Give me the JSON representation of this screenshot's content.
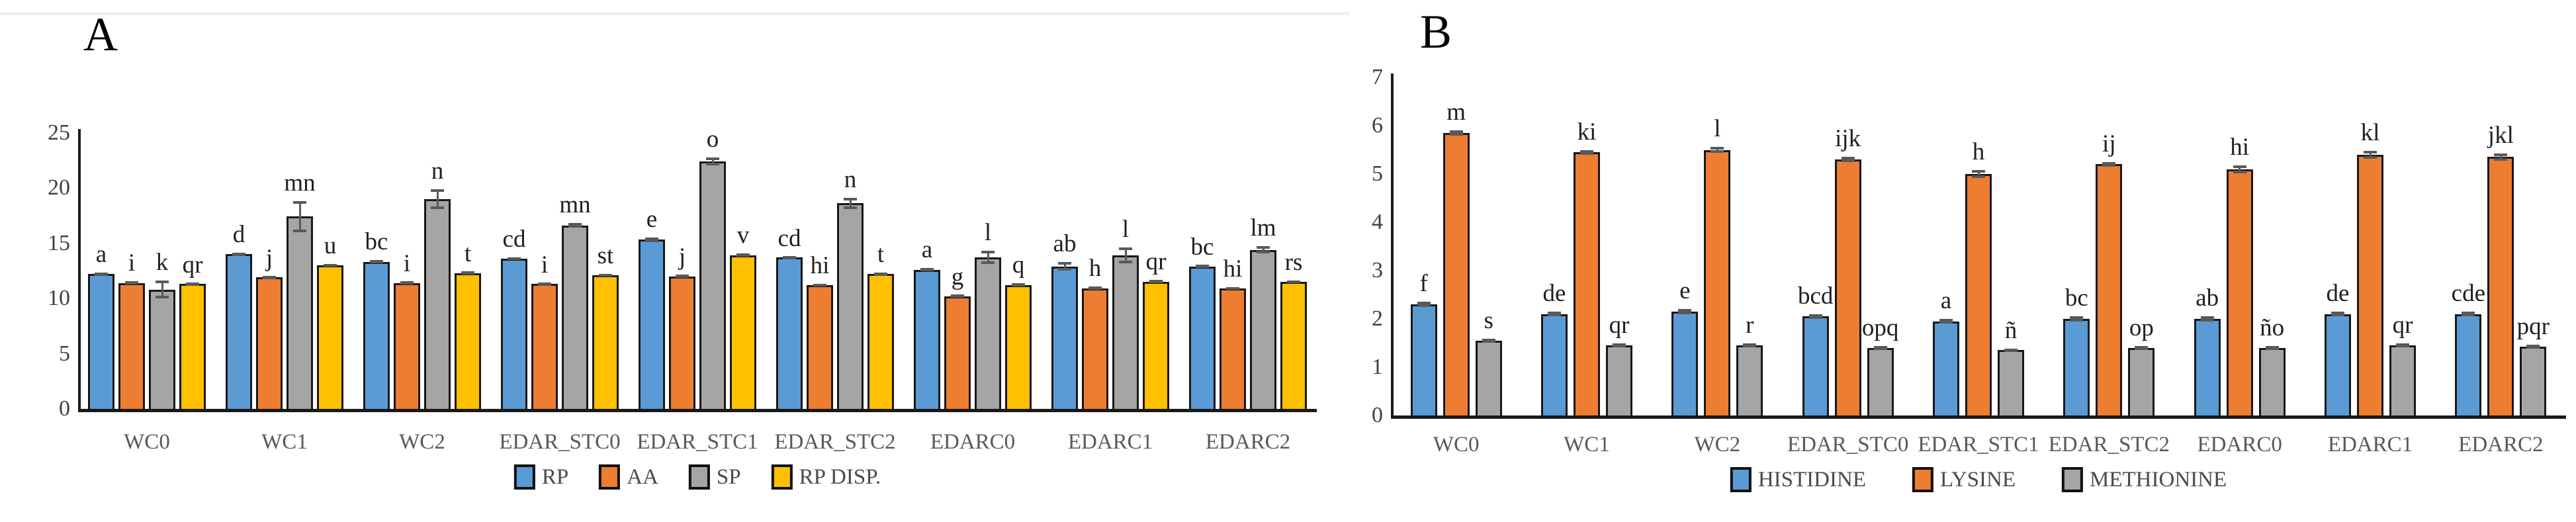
{
  "figure": {
    "background": "#ffffff"
  },
  "colors": {
    "blue": "#5B9BD5",
    "orange": "#ED7D31",
    "gray": "#A5A5A5",
    "yellow": "#FFC000",
    "error_bar": "#595959",
    "axis": "#1a1a1a",
    "tick_text": "#3f3f3f",
    "category_text": "#595959",
    "legend_text": "#4a4a4a"
  },
  "chart_data": [
    {
      "panel": "A",
      "type": "bar",
      "title": "",
      "xlabel": "",
      "ylabel": "",
      "ylim": [
        0,
        25
      ],
      "yticks": [
        0,
        5,
        10,
        15,
        20,
        25
      ],
      "grid": false,
      "legend_position": "bottom",
      "categories": [
        "WC0",
        "WC1",
        "WC2",
        "EDAR_STC0",
        "EDAR_STC1",
        "EDAR_STC2",
        "EDARC0",
        "EDARC1",
        "EDARC2"
      ],
      "series": [
        {
          "name": "RP",
          "color": "blue",
          "values": [
            12.2,
            14.0,
            13.3,
            13.6,
            15.3,
            13.7,
            12.6,
            12.9,
            12.9
          ],
          "errors": [
            0.15,
            0.15,
            0.15,
            0.1,
            0.2,
            0.1,
            0.15,
            0.4,
            0.1
          ],
          "letters": [
            "a",
            "d",
            "bc",
            "cd",
            "e",
            "cd",
            "a",
            "ab",
            "bc"
          ]
        },
        {
          "name": "AA",
          "color": "orange",
          "values": [
            11.4,
            11.9,
            11.4,
            11.3,
            12.0,
            11.2,
            10.2,
            10.9,
            10.9
          ],
          "errors": [
            0.15,
            0.1,
            0.1,
            0.1,
            0.1,
            0.1,
            0.1,
            0.15,
            0.1
          ],
          "letters": [
            "i",
            "j",
            "i",
            "i",
            "j",
            "hi",
            "g",
            "h",
            "hi"
          ]
        },
        {
          "name": "SP",
          "color": "gray",
          "values": [
            10.8,
            17.4,
            19.0,
            16.6,
            22.4,
            18.6,
            13.7,
            13.9,
            14.4
          ],
          "errors": [
            0.8,
            1.4,
            0.9,
            0.2,
            0.35,
            0.5,
            0.6,
            0.7,
            0.35
          ],
          "letters": [
            "k",
            "mn",
            "n",
            "mn",
            "o",
            "n",
            "l",
            "l",
            "lm"
          ]
        },
        {
          "name": "RP DISP.",
          "color": "yellow",
          "values": [
            11.3,
            13.0,
            12.3,
            12.1,
            13.9,
            12.2,
            11.2,
            11.5,
            11.5
          ],
          "errors": [
            0.1,
            0.1,
            0.1,
            0.1,
            0.15,
            0.15,
            0.15,
            0.15,
            0.1
          ],
          "letters": [
            "qr",
            "u",
            "t",
            "st",
            "v",
            "t",
            "q",
            "qr",
            "rs"
          ]
        }
      ]
    },
    {
      "panel": "B",
      "type": "bar",
      "title": "",
      "xlabel": "",
      "ylabel": "",
      "ylim": [
        0,
        7
      ],
      "yticks": [
        0,
        1,
        2,
        3,
        4,
        5,
        6,
        7
      ],
      "grid": false,
      "legend_position": "bottom",
      "categories": [
        "WC0",
        "WC1",
        "WC2",
        "EDAR_STC0",
        "EDAR_STC1",
        "EDAR_STC2",
        "EDARC0",
        "EDARC1",
        "EDARC2"
      ],
      "series": [
        {
          "name": "HISTIDINE",
          "color": "blue",
          "values": [
            2.3,
            2.1,
            2.15,
            2.05,
            1.95,
            2.0,
            2.0,
            2.1,
            2.1
          ],
          "errors": [
            0.05,
            0.05,
            0.05,
            0.05,
            0.05,
            0.05,
            0.05,
            0.05,
            0.05
          ],
          "letters": [
            "f",
            "de",
            "e",
            "bcd",
            "a",
            "bc",
            "ab",
            "de",
            "cde"
          ]
        },
        {
          "name": "LYSINE",
          "color": "orange",
          "values": [
            5.85,
            5.45,
            5.5,
            5.3,
            5.0,
            5.2,
            5.1,
            5.4,
            5.35
          ],
          "errors": [
            0.05,
            0.05,
            0.06,
            0.06,
            0.08,
            0.05,
            0.08,
            0.08,
            0.08
          ],
          "letters": [
            "m",
            "ki",
            "l",
            "ijk",
            "h",
            "ij",
            "hi",
            "kl",
            "jkl"
          ]
        },
        {
          "name": "METHIONINE",
          "color": "gray",
          "values": [
            1.55,
            1.45,
            1.45,
            1.4,
            1.35,
            1.4,
            1.4,
            1.45,
            1.42
          ],
          "errors": [
            0.04,
            0.04,
            0.04,
            0.04,
            0.04,
            0.04,
            0.04,
            0.04,
            0.04
          ],
          "letters": [
            "s",
            "qr",
            "r",
            "opq",
            "ñ",
            "op",
            "ño",
            "qr",
            "pqr"
          ]
        }
      ]
    }
  ]
}
